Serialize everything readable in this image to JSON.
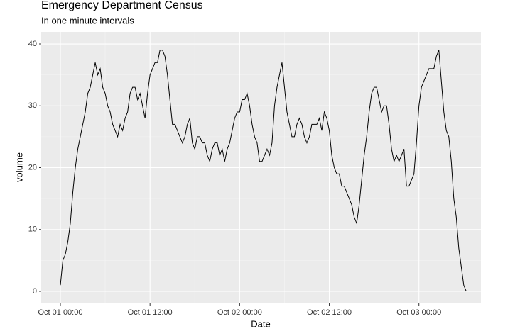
{
  "chart_data": {
    "type": "line",
    "title": "Emergency Department Census",
    "subtitle": "In one minute intervals",
    "x_label": "Date",
    "y_label": "volume",
    "color": "#000000",
    "grid": true,
    "x": [
      "Oct 01 00:00",
      "Oct 01 00:20",
      "Oct 01 00:40",
      "Oct 01 01:00",
      "Oct 01 01:20",
      "Oct 01 01:40",
      "Oct 01 02:00",
      "Oct 01 02:20",
      "Oct 01 02:40",
      "Oct 01 03:00",
      "Oct 01 03:20",
      "Oct 01 03:40",
      "Oct 01 04:00",
      "Oct 01 04:20",
      "Oct 01 04:40",
      "Oct 01 05:00",
      "Oct 01 05:20",
      "Oct 01 05:40",
      "Oct 01 06:00",
      "Oct 01 06:20",
      "Oct 01 06:40",
      "Oct 01 07:00",
      "Oct 01 07:20",
      "Oct 01 07:40",
      "Oct 01 08:00",
      "Oct 01 08:20",
      "Oct 01 08:40",
      "Oct 01 09:00",
      "Oct 01 09:20",
      "Oct 01 09:40",
      "Oct 01 10:00",
      "Oct 01 10:20",
      "Oct 01 10:40",
      "Oct 01 11:00",
      "Oct 01 11:20",
      "Oct 01 11:40",
      "Oct 01 12:00",
      "Oct 01 12:20",
      "Oct 01 12:40",
      "Oct 01 13:00",
      "Oct 01 13:20",
      "Oct 01 13:40",
      "Oct 01 14:00",
      "Oct 01 14:20",
      "Oct 01 14:40",
      "Oct 01 15:00",
      "Oct 01 15:20",
      "Oct 01 15:40",
      "Oct 01 16:00",
      "Oct 01 16:20",
      "Oct 01 16:40",
      "Oct 01 17:00",
      "Oct 01 17:20",
      "Oct 01 17:40",
      "Oct 01 18:00",
      "Oct 01 18:20",
      "Oct 01 18:40",
      "Oct 01 19:00",
      "Oct 01 19:20",
      "Oct 01 19:40",
      "Oct 01 20:00",
      "Oct 01 20:20",
      "Oct 01 20:40",
      "Oct 01 21:00",
      "Oct 01 21:20",
      "Oct 01 21:40",
      "Oct 01 22:00",
      "Oct 01 22:20",
      "Oct 01 22:40",
      "Oct 01 23:00",
      "Oct 01 23:20",
      "Oct 01 23:40",
      "Oct 02 00:00",
      "Oct 02 00:20",
      "Oct 02 00:40",
      "Oct 02 01:00",
      "Oct 02 01:20",
      "Oct 02 01:40",
      "Oct 02 02:00",
      "Oct 02 02:20",
      "Oct 02 02:40",
      "Oct 02 03:00",
      "Oct 02 03:20",
      "Oct 02 03:40",
      "Oct 02 04:00",
      "Oct 02 04:20",
      "Oct 02 04:40",
      "Oct 02 05:00",
      "Oct 02 05:20",
      "Oct 02 05:40",
      "Oct 02 06:00",
      "Oct 02 06:20",
      "Oct 02 06:40",
      "Oct 02 07:00",
      "Oct 02 07:20",
      "Oct 02 07:40",
      "Oct 02 08:00",
      "Oct 02 08:20",
      "Oct 02 08:40",
      "Oct 02 09:00",
      "Oct 02 09:20",
      "Oct 02 09:40",
      "Oct 02 10:00",
      "Oct 02 10:20",
      "Oct 02 10:40",
      "Oct 02 11:00",
      "Oct 02 11:20",
      "Oct 02 11:40",
      "Oct 02 12:00",
      "Oct 02 12:20",
      "Oct 02 12:40",
      "Oct 02 13:00",
      "Oct 02 13:20",
      "Oct 02 13:40",
      "Oct 02 14:00",
      "Oct 02 14:20",
      "Oct 02 14:40",
      "Oct 02 15:00",
      "Oct 02 15:20",
      "Oct 02 15:40",
      "Oct 02 16:00",
      "Oct 02 16:20",
      "Oct 02 16:40",
      "Oct 02 17:00",
      "Oct 02 17:20",
      "Oct 02 17:40",
      "Oct 02 18:00",
      "Oct 02 18:20",
      "Oct 02 18:40",
      "Oct 02 19:00",
      "Oct 02 19:20",
      "Oct 02 19:40",
      "Oct 02 20:00",
      "Oct 02 20:20",
      "Oct 02 20:40",
      "Oct 02 21:00",
      "Oct 02 21:20",
      "Oct 02 21:40",
      "Oct 02 22:00",
      "Oct 02 22:20",
      "Oct 02 22:40",
      "Oct 02 23:00",
      "Oct 02 23:20",
      "Oct 02 23:40",
      "Oct 03 00:00",
      "Oct 03 00:20",
      "Oct 03 00:40",
      "Oct 03 01:00",
      "Oct 03 01:20",
      "Oct 03 01:40",
      "Oct 03 02:00",
      "Oct 03 02:20",
      "Oct 03 02:40",
      "Oct 03 03:00",
      "Oct 03 03:20",
      "Oct 03 03:40",
      "Oct 03 04:00",
      "Oct 03 04:20",
      "Oct 03 04:40",
      "Oct 03 05:00",
      "Oct 03 05:20",
      "Oct 03 05:40",
      "Oct 03 06:00",
      "Oct 03 06:20"
    ],
    "values": [
      1,
      5,
      6,
      8,
      11,
      16,
      20,
      23,
      25,
      27,
      29,
      32,
      33,
      35,
      37,
      35,
      36,
      33,
      32,
      30,
      29,
      27,
      26,
      25,
      27,
      26,
      28,
      29,
      32,
      33,
      33,
      31,
      32,
      30,
      28,
      32,
      35,
      36,
      37,
      37,
      39,
      39,
      38,
      35,
      31,
      27,
      27,
      26,
      25,
      24,
      25,
      27,
      28,
      24,
      23,
      25,
      25,
      24,
      24,
      22,
      21,
      23,
      24,
      24,
      22,
      23,
      21,
      23,
      24,
      26,
      28,
      29,
      29,
      31,
      31,
      32,
      30,
      27,
      25,
      24,
      21,
      21,
      22,
      23,
      22,
      24,
      30,
      33,
      35,
      37,
      33,
      29,
      27,
      25,
      25,
      27,
      28,
      27,
      25,
      24,
      25,
      27,
      27,
      27,
      28,
      26,
      29,
      28,
      26,
      22,
      20,
      19,
      19,
      17,
      17,
      16,
      15,
      14,
      12,
      11,
      14,
      18,
      22,
      25,
      29,
      32,
      33,
      33,
      31,
      29,
      30,
      30,
      27,
      23,
      21,
      22,
      21,
      22,
      23,
      17,
      17,
      18,
      19,
      24,
      30,
      33,
      34,
      35,
      36,
      36,
      36,
      38,
      39,
      34,
      29,
      26,
      25,
      21,
      15,
      12,
      7,
      4,
      1,
      0
    ],
    "xlim": [
      "Sep 30 21:26",
      "Oct 03 08:18"
    ],
    "xticks": [
      "Oct 01 00:00",
      "Oct 01 12:00",
      "Oct 02 00:00",
      "Oct 02 12:00",
      "Oct 03 00:00"
    ],
    "ylim": [
      -1.95,
      41.95
    ],
    "yticks": [
      0,
      10,
      20,
      30,
      40
    ]
  }
}
